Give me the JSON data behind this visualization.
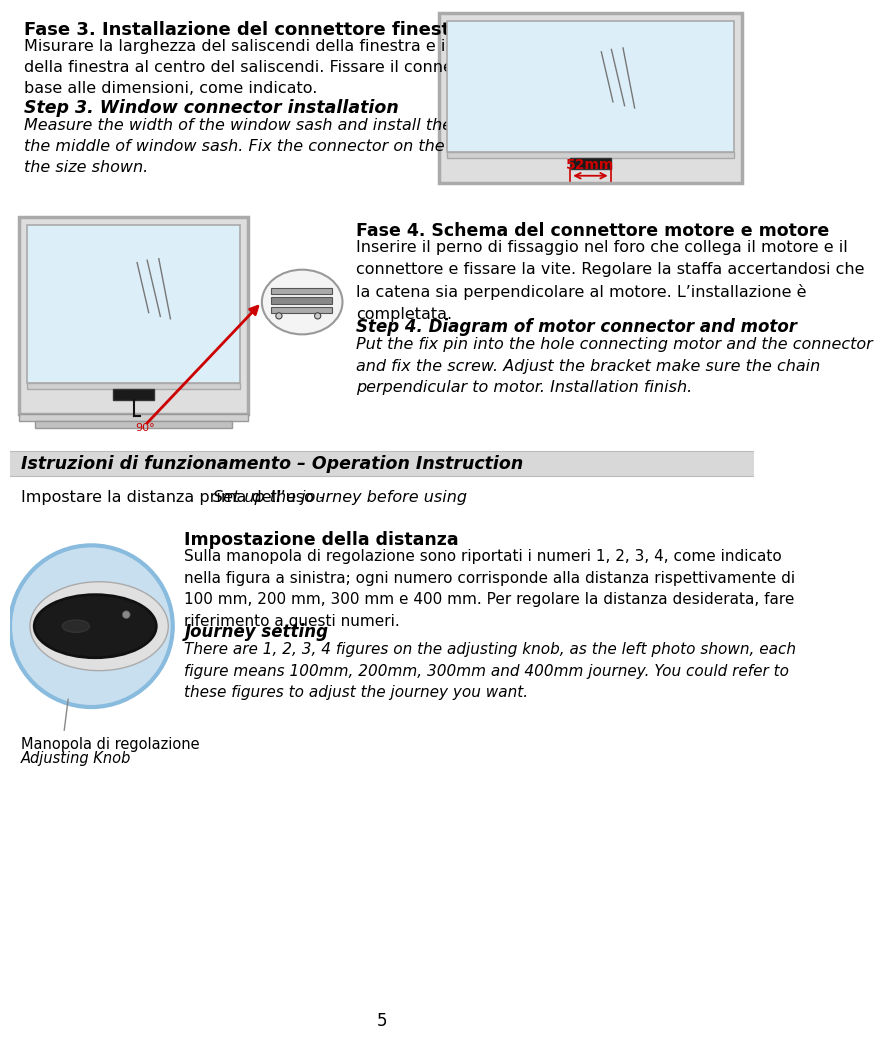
{
  "bg_color": "#ffffff",
  "page_width": 9.6,
  "page_height": 13.54,
  "section1": {
    "title_it": "Fase 3. Installazione del connettore finestra",
    "body_it": "Misurare la larghezza del saliscendi della finestra e installare il connettore\ndella finestra al centro del saliscendi. Fissare il connettore sulla finestra in\nbase alle dimensioni, come indicato.",
    "title_en": "Step 3. Window connector installation",
    "body_en": "Measure the width of the window sash and install the window connector in\nthe middle of window sash. Fix the connector on the window according to\nthe size shown."
  },
  "section2": {
    "title_it": "Fase 4. Schema del connettore motore e motore",
    "body_it": "Inserire il perno di fissaggio nel foro che collega il motore e il\nconnettore e fissare la vite. Regolare la staffa accertandosi che\nla catena sia perpendicolare al motore. L’installazione è\ncompletata.",
    "title_en": "Step 4. Diagram of motor connector and motor",
    "body_en": "Put the fix pin into the hole connecting motor and the connector\nand fix the screw. Adjust the bracket make sure the chain\nperpendicular to motor. Installation finish."
  },
  "section3": {
    "header": "Istruzioni di funzionamento – Operation Instruction",
    "subheader_it": "Impostare la distanza prima dell’uso - ",
    "subheader_en": "Set up the journey before using",
    "title_knob_it": "Impostazione della distanza",
    "body_knob_it": "Sulla manopola di regolazione sono riportati i numeri 1, 2, 3, 4, come indicato\nnella figura a sinistra; ogni numero corrisponde alla distanza rispettivamente di\n100 mm, 200 mm, 300 mm e 400 mm. Per regolare la distanza desiderata, fare\nriferimento a questi numeri.",
    "title_knob_en": "Journey setting",
    "body_knob_en": "There are 1, 2, 3, 4 figures on the adjusting knob, as the left photo shown, each\nfigure means 100mm, 200mm, 300mm and 400mm journey. You could refer to\nthese figures to adjust the journey you want.",
    "label_knob_it": "Manopola di regolazione",
    "label_knob_en": "Adjusting Knob"
  },
  "page_number": "5",
  "window_color": "#dceef8",
  "frame_outer_color": "#c0c0c0",
  "frame_inner_color": "#e8e8e8",
  "connector_color": "#1a1a1a",
  "dim_color": "#cc0000",
  "dim_label": "52mm"
}
